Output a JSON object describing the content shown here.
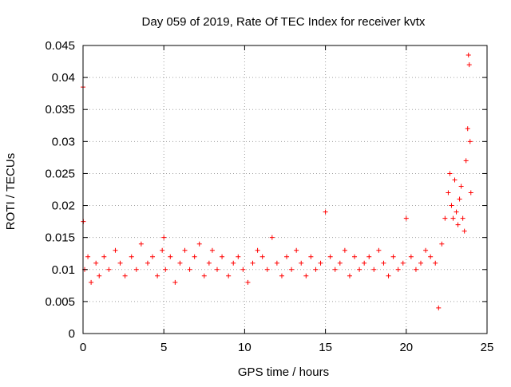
{
  "chart_data": {
    "type": "scatter",
    "title": "Day 059 of 2019, Rate Of TEC Index for receiver kvtx",
    "xlabel": "GPS time / hours",
    "ylabel": "ROTI / TECUs",
    "xlim": [
      0,
      25
    ],
    "ylim": [
      0,
      0.045
    ],
    "xticks": [
      0,
      5,
      10,
      15,
      20,
      25
    ],
    "xtick_labels": [
      "0",
      "5",
      "10",
      "15",
      "20",
      "25"
    ],
    "yticks": [
      0,
      0.005,
      0.01,
      0.015,
      0.02,
      0.025,
      0.03,
      0.035,
      0.04,
      0.045
    ],
    "ytick_labels": [
      "0",
      "0.005",
      "0.01",
      "0.015",
      "0.02",
      "0.025",
      "0.03",
      "0.035",
      "0.04",
      "0.045"
    ],
    "grid": true,
    "marker": "+",
    "color": "#ff0000",
    "series": [
      {
        "name": "ROTI",
        "x": [
          0.0,
          0.02,
          0.1,
          0.3,
          0.5,
          0.8,
          1.0,
          1.3,
          1.6,
          2.0,
          2.3,
          2.6,
          3.0,
          3.3,
          3.6,
          4.0,
          4.3,
          4.6,
          4.9,
          5.0,
          5.1,
          5.4,
          5.7,
          6.0,
          6.3,
          6.6,
          6.9,
          7.2,
          7.5,
          7.8,
          8.0,
          8.3,
          8.6,
          9.0,
          9.3,
          9.6,
          9.9,
          10.2,
          10.5,
          10.8,
          11.1,
          11.4,
          11.7,
          12.0,
          12.3,
          12.6,
          12.9,
          13.2,
          13.5,
          13.8,
          14.1,
          14.4,
          14.7,
          15.0,
          15.3,
          15.6,
          15.9,
          16.2,
          16.5,
          16.8,
          17.1,
          17.4,
          17.7,
          18.0,
          18.3,
          18.6,
          18.9,
          19.2,
          19.5,
          19.8,
          20.0,
          20.3,
          20.6,
          20.9,
          21.2,
          21.5,
          21.8,
          22.0,
          22.2,
          22.4,
          22.6,
          22.7,
          22.8,
          22.9,
          23.0,
          23.1,
          23.2,
          23.3,
          23.4,
          23.5,
          23.6,
          23.7,
          23.8,
          23.85,
          23.9,
          23.95,
          24.0
        ],
        "y": [
          0.0385,
          0.0175,
          0.01,
          0.012,
          0.008,
          0.011,
          0.009,
          0.012,
          0.01,
          0.013,
          0.011,
          0.009,
          0.012,
          0.01,
          0.014,
          0.011,
          0.012,
          0.009,
          0.013,
          0.015,
          0.01,
          0.012,
          0.008,
          0.011,
          0.013,
          0.01,
          0.012,
          0.014,
          0.009,
          0.011,
          0.013,
          0.01,
          0.012,
          0.009,
          0.011,
          0.012,
          0.01,
          0.008,
          0.011,
          0.013,
          0.012,
          0.01,
          0.015,
          0.011,
          0.009,
          0.012,
          0.01,
          0.013,
          0.011,
          0.009,
          0.012,
          0.01,
          0.011,
          0.019,
          0.012,
          0.01,
          0.011,
          0.013,
          0.009,
          0.012,
          0.01,
          0.011,
          0.012,
          0.01,
          0.013,
          0.011,
          0.009,
          0.012,
          0.01,
          0.011,
          0.018,
          0.012,
          0.01,
          0.011,
          0.013,
          0.012,
          0.011,
          0.004,
          0.014,
          0.018,
          0.022,
          0.025,
          0.02,
          0.018,
          0.024,
          0.019,
          0.017,
          0.021,
          0.023,
          0.018,
          0.016,
          0.027,
          0.032,
          0.0435,
          0.042,
          0.03,
          0.022
        ]
      }
    ]
  }
}
